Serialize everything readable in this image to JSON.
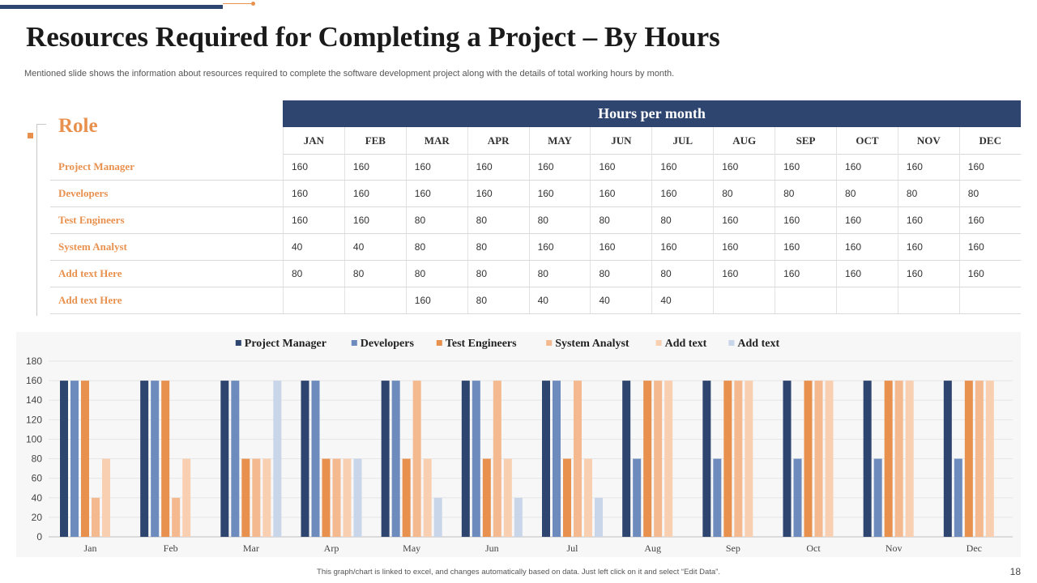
{
  "slide": {
    "title": "Resources Required for Completing a Project – By Hours",
    "subtitle": "Mentioned slide shows the information about resources required to complete the software development project along with the details of total working hours by month.",
    "footer": "This graph/chart is linked to excel, and changes automatically based on data. Just left click on it and select “Edit Data”.",
    "page_number": "18"
  },
  "table": {
    "role_header": "Role",
    "group_header": "Hours per month",
    "months": [
      "JAN",
      "FEB",
      "MAR",
      "APR",
      "MAY",
      "JUN",
      "JUL",
      "AUG",
      "SEP",
      "OCT",
      "NOV",
      "DEC"
    ],
    "rows": [
      {
        "role": "Project Manager",
        "values": [
          "160",
          "160",
          "160",
          "160",
          "160",
          "160",
          "160",
          "160",
          "160",
          "160",
          "160",
          "160"
        ]
      },
      {
        "role": "Developers",
        "values": [
          "160",
          "160",
          "160",
          "160",
          "160",
          "160",
          "160",
          "80",
          "80",
          "80",
          "80",
          "80"
        ]
      },
      {
        "role": "Test Engineers",
        "values": [
          "160",
          "160",
          "80",
          "80",
          "80",
          "80",
          "80",
          "160",
          "160",
          "160",
          "160",
          "160"
        ]
      },
      {
        "role": "System Analyst",
        "values": [
          "40",
          "40",
          "80",
          "80",
          "160",
          "160",
          "160",
          "160",
          "160",
          "160",
          "160",
          "160"
        ]
      },
      {
        "role": "Add text Here",
        "values": [
          "80",
          "80",
          "80",
          "80",
          "80",
          "80",
          "80",
          "160",
          "160",
          "160",
          "160",
          "160"
        ]
      },
      {
        "role": "Add text Here",
        "values": [
          "",
          "",
          "160",
          "80",
          "40",
          "40",
          "40",
          "",
          "",
          "",
          "",
          ""
        ]
      }
    ]
  },
  "chart_data": {
    "type": "bar",
    "title": "",
    "xlabel": "",
    "ylabel": "",
    "categories": [
      "Jan",
      "Feb",
      "Mar",
      "Arp",
      "May",
      "Jun",
      "Jul",
      "Aug",
      "Sep",
      "Oct",
      "Nov",
      "Dec"
    ],
    "ylim": [
      0,
      180
    ],
    "yticks": [
      0,
      20,
      40,
      60,
      80,
      100,
      120,
      140,
      160,
      180
    ],
    "legend_position": "top",
    "grid": true,
    "series": [
      {
        "name": "Project Manager",
        "color": "#2E4570",
        "values": [
          160,
          160,
          160,
          160,
          160,
          160,
          160,
          160,
          160,
          160,
          160,
          160
        ]
      },
      {
        "name": "Developers",
        "color": "#6E8BBE",
        "values": [
          160,
          160,
          160,
          160,
          160,
          160,
          160,
          80,
          80,
          80,
          80,
          80
        ]
      },
      {
        "name": "Test Engineers",
        "color": "#E8914F",
        "values": [
          160,
          160,
          80,
          80,
          80,
          80,
          80,
          160,
          160,
          160,
          160,
          160
        ]
      },
      {
        "name": "System Analyst",
        "color": "#F4B98E",
        "values": [
          40,
          40,
          80,
          80,
          160,
          160,
          160,
          160,
          160,
          160,
          160,
          160
        ]
      },
      {
        "name": "Add text",
        "color": "#F9CFB1",
        "values": [
          80,
          80,
          80,
          80,
          80,
          80,
          80,
          160,
          160,
          160,
          160,
          160
        ]
      },
      {
        "name": "Add text",
        "color": "#C9D5E9",
        "values": [
          0,
          0,
          160,
          80,
          40,
          40,
          40,
          0,
          0,
          0,
          0,
          0
        ]
      }
    ]
  }
}
